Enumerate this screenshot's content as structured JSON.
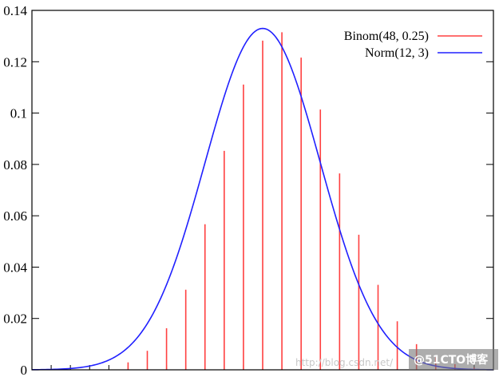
{
  "chart_data": {
    "type": "line",
    "title": "",
    "xlabel": "",
    "ylabel": "",
    "xlim": [
      0,
      24
    ],
    "ylim": [
      0,
      0.14
    ],
    "y_ticks": [
      "0",
      "0.02",
      "0.04",
      "0.06",
      "0.08",
      "0.1",
      "0.12",
      "0.14"
    ],
    "y_tick_values": [
      0,
      0.02,
      0.04,
      0.06,
      0.08,
      0.1,
      0.12,
      0.14
    ],
    "grid": false,
    "legend_position": "top-right",
    "series": [
      {
        "name": "Binom(48, 0.25)",
        "kind": "impulse",
        "color": "#ff4040",
        "x": [
          1,
          2,
          3,
          4,
          5,
          6,
          7,
          8,
          9,
          10,
          11,
          12,
          13,
          14,
          15,
          16,
          17,
          18,
          19,
          20,
          21,
          22,
          23
        ],
        "y": [
          0.0,
          0.0,
          0.0,
          0.0,
          0.0029,
          0.0074,
          0.0162,
          0.0312,
          0.0567,
          0.0853,
          0.1111,
          0.1282,
          0.1315,
          0.1216,
          0.1014,
          0.0765,
          0.0526,
          0.0331,
          0.0189,
          0.01,
          0.0049,
          0.0022,
          0.0009
        ]
      },
      {
        "name": "Norm(12, 3)",
        "kind": "curve",
        "color": "#2020ff",
        "mean": 12,
        "sd": 3
      }
    ]
  },
  "watermark": {
    "text": "http://blog.csdn.net/",
    "credit": "@51CTO博客"
  }
}
